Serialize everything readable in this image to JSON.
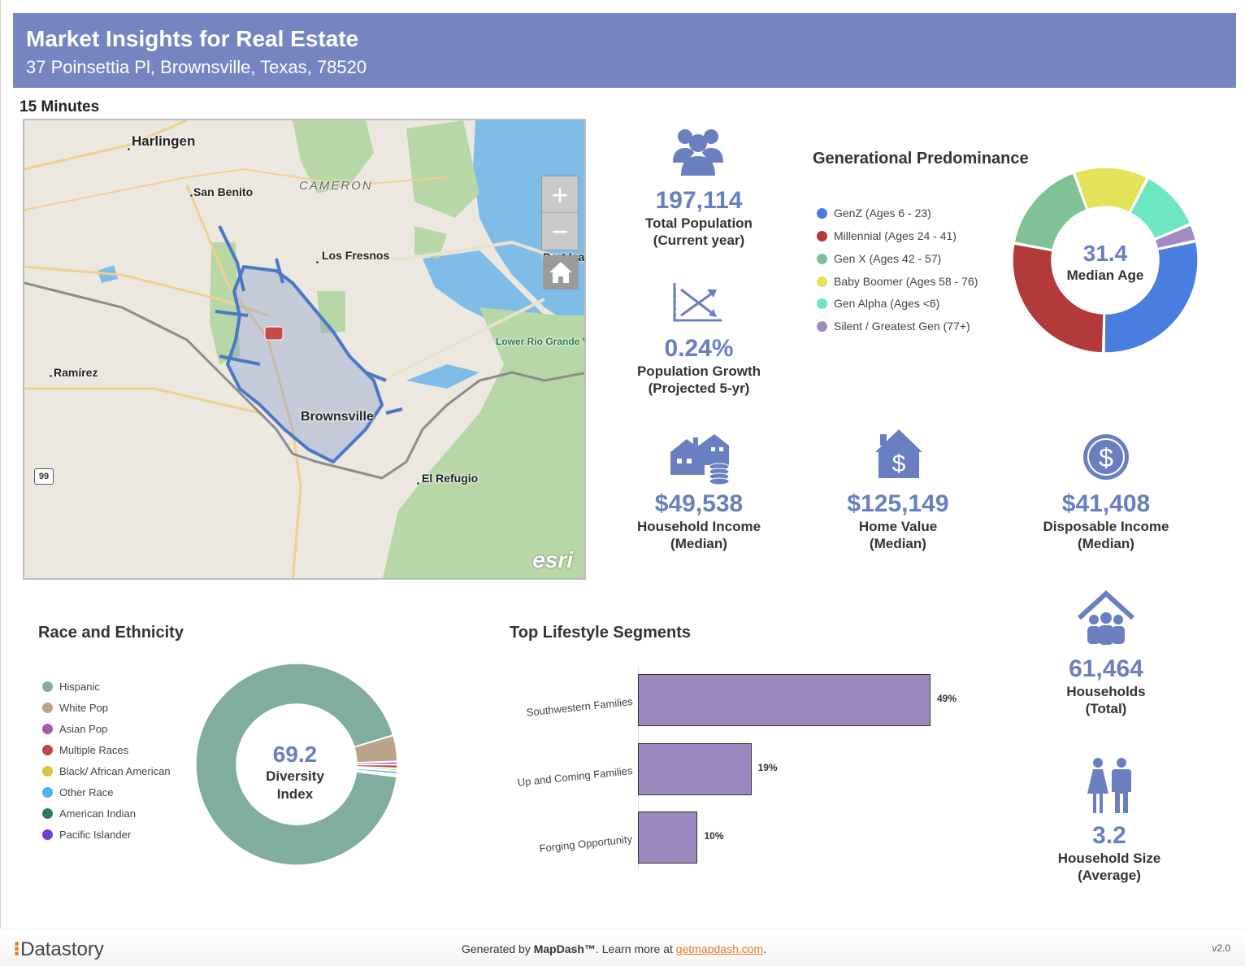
{
  "header": {
    "title": "Market Insights for Real Estate",
    "address": "37 Poinsettia Pl, Brownsville, Texas, 78520"
  },
  "drive_time": "15 Minutes",
  "map": {
    "labels": {
      "harlingen": "Harlingen",
      "san_benito": "San Benito",
      "cameron": "CAMERON",
      "los_fresnos": "Los Fresnos",
      "port_isabel": "Port Isa",
      "ramirez": "Ramírez",
      "brownsville": "Brownsville",
      "el_refugio": "El Refugio",
      "refuge": "Lower Rio Grande Valley National Wildlife Refuge",
      "highway": "99"
    },
    "zoom_in": "+",
    "zoom_out": "−",
    "attribution": "esri",
    "icons": [
      "home-icon",
      "zoom-in-icon",
      "zoom-out-icon"
    ]
  },
  "stats": {
    "population": {
      "value": "197,114",
      "label1": "Total Population",
      "label2": "(Current year)",
      "icon": "people-icon"
    },
    "growth": {
      "value": "0.24%",
      "label1": "Population Growth",
      "label2": "(Projected 5-yr)",
      "icon": "trend-chart-icon"
    },
    "household_income": {
      "value": "$49,538",
      "label1": "Household Income",
      "label2": "(Median)",
      "icon": "houses-coins-icon"
    },
    "home_value": {
      "value": "$125,149",
      "label1": "Home Value",
      "label2": "(Median)",
      "icon": "house-dollar-icon"
    },
    "disposable_income": {
      "value": "$41,408",
      "label1": "Disposable Income",
      "label2": "(Median)",
      "icon": "dollar-coin-icon"
    },
    "households": {
      "value": "61,464",
      "label1": "Households",
      "label2": "(Total)",
      "icon": "family-house-icon"
    },
    "household_size": {
      "value": "3.2",
      "label1": "Household Size",
      "label2": "(Average)",
      "icon": "couple-icon"
    }
  },
  "generational": {
    "title": "Generational Predominance",
    "center_value": "31.4",
    "center_label": "Median Age",
    "legend": [
      {
        "label": "GenZ (Ages 6 - 23)",
        "color": "#4a7de0"
      },
      {
        "label": "Millennial (Ages 24 - 41)",
        "color": "#b23a3a"
      },
      {
        "label": "Gen X (Ages 42 - 57)",
        "color": "#80c195"
      },
      {
        "label": "Baby Boomer (Ages 58 - 76)",
        "color": "#e3e35a"
      },
      {
        "label": "Gen Alpha (Ages <6)",
        "color": "#6ee6c2"
      },
      {
        "label": "Silent / Greatest Gen (77+)",
        "color": "#a08cc2"
      }
    ]
  },
  "race": {
    "title": "Race and Ethnicity",
    "center_value": "69.2",
    "center_label1": "Diversity",
    "center_label2": "Index",
    "legend": [
      {
        "label": "Hispanic",
        "color": "#80ada0"
      },
      {
        "label": "White Pop",
        "color": "#b8a48a"
      },
      {
        "label": "Asian Pop",
        "color": "#a65ab0"
      },
      {
        "label": "Multiple Races",
        "color": "#c0454a"
      },
      {
        "label": "Black/ African American",
        "color": "#d9c43a"
      },
      {
        "label": "Other Race",
        "color": "#4ab2ea"
      },
      {
        "label": "American Indian",
        "color": "#2f7a52"
      },
      {
        "label": "Pacific Islander",
        "color": "#6b3fd0"
      }
    ]
  },
  "lifestyle": {
    "title": "Top Lifestyle Segments"
  },
  "chart_data": [
    {
      "type": "pie",
      "categories": [
        "GenZ (Ages 6 - 23)",
        "Millennial (Ages 24 - 41)",
        "Gen X (Ages 42 - 57)",
        "Baby Boomer (Ages 58 - 76)",
        "Gen Alpha (Ages <6)",
        "Silent / Greatest Gen (77+)"
      ],
      "values": [
        28.5,
        27.5,
        16.5,
        13,
        11,
        3
      ],
      "colors": [
        "#4a7de0",
        "#b23a3a",
        "#80c195",
        "#e3e35a",
        "#6ee6c2",
        "#a08cc2"
      ]
    },
    {
      "type": "pie",
      "categories": [
        "Hispanic",
        "White Pop",
        "Asian Pop",
        "Multiple Races",
        "Black/ African American",
        "Other Race",
        "American Indian",
        "Pacific Islander"
      ],
      "values": [
        93.4,
        4.2,
        0.5,
        0.6,
        0.4,
        0.5,
        0.3,
        0.1
      ],
      "colors": [
        "#80ada0",
        "#b8a48a",
        "#a65ab0",
        "#c0454a",
        "#d9c43a",
        "#4ab2ea",
        "#2f7a52",
        "#6b3fd0"
      ]
    },
    {
      "type": "bar",
      "categories": [
        "Southwestern Families",
        "Up and Coming Families",
        "Forging Opportunity"
      ],
      "values": [
        49,
        19,
        10
      ],
      "labels": [
        "49%",
        "19%",
        "10%"
      ],
      "color": "#9c89bf"
    }
  ],
  "footer": {
    "brand": "Datastory",
    "generated_prefix": "Generated by ",
    "generated_brand": "MapDash™",
    "learn_more": ".  Learn more at ",
    "link": "getmapdash.com",
    "link_suffix": ".",
    "version": "v2.0"
  }
}
